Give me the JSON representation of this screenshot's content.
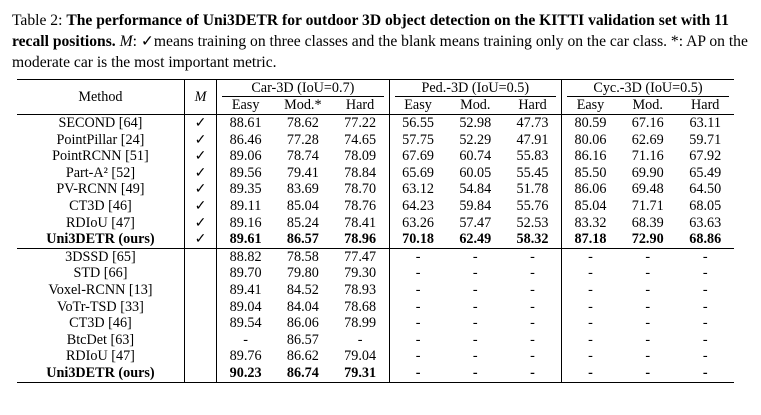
{
  "caption": {
    "label": "Table 2:",
    "bold": "The performance of Uni3DETR for outdoor 3D object detection on the KITTI validation set with 11 recall positions.",
    "m_symbol": "M",
    "rest": ": ✓means training on three classes and the blank means training only on the car class. *: AP on the moderate car is the most important metric."
  },
  "table": {
    "col_method": "Method",
    "col_m": "M",
    "groups": [
      "Car-3D (IoU=0.7)",
      "Ped.-3D (IoU=0.5)",
      "Cyc.-3D (IoU=0.5)"
    ],
    "subcols": [
      "Easy",
      "Mod.*",
      "Hard",
      "Easy",
      "Mod.",
      "Hard",
      "Easy",
      "Mod.",
      "Hard"
    ],
    "section1": [
      {
        "method": "SECOND [64]",
        "m": "✓",
        "vals": [
          "88.61",
          "78.62",
          "77.22",
          "56.55",
          "52.98",
          "47.73",
          "80.59",
          "67.16",
          "63.11"
        ]
      },
      {
        "method": "PointPillar [24]",
        "m": "✓",
        "vals": [
          "86.46",
          "77.28",
          "74.65",
          "57.75",
          "52.29",
          "47.91",
          "80.06",
          "62.69",
          "59.71"
        ]
      },
      {
        "method": "PointRCNN [51]",
        "m": "✓",
        "vals": [
          "89.06",
          "78.74",
          "78.09",
          "67.69",
          "60.74",
          "55.83",
          "86.16",
          "71.16",
          "67.92"
        ]
      },
      {
        "method": "Part-A² [52]",
        "m": "✓",
        "vals": [
          "89.56",
          "79.41",
          "78.84",
          "65.69",
          "60.05",
          "55.45",
          "85.50",
          "69.90",
          "65.49"
        ]
      },
      {
        "method": "PV-RCNN [49]",
        "m": "✓",
        "vals": [
          "89.35",
          "83.69",
          "78.70",
          "63.12",
          "54.84",
          "51.78",
          "86.06",
          "69.48",
          "64.50"
        ]
      },
      {
        "method": "CT3D [46]",
        "m": "✓",
        "vals": [
          "89.11",
          "85.04",
          "78.76",
          "64.23",
          "59.84",
          "55.76",
          "85.04",
          "71.71",
          "68.05"
        ]
      },
      {
        "method": "RDIoU [47]",
        "m": "✓",
        "vals": [
          "89.16",
          "85.24",
          "78.41",
          "63.26",
          "57.47",
          "52.53",
          "83.32",
          "68.39",
          "63.63"
        ]
      },
      {
        "method": "Uni3DETR (ours)",
        "m": "✓",
        "vals": [
          "89.61",
          "86.57",
          "78.96",
          "70.18",
          "62.49",
          "58.32",
          "87.18",
          "72.90",
          "68.86"
        ],
        "bold": true
      }
    ],
    "section2": [
      {
        "method": "3DSSD [65]",
        "m": "",
        "vals": [
          "88.82",
          "78.58",
          "77.47",
          "-",
          "-",
          "-",
          "-",
          "-",
          "-"
        ]
      },
      {
        "method": "STD [66]",
        "m": "",
        "vals": [
          "89.70",
          "79.80",
          "79.30",
          "-",
          "-",
          "-",
          "-",
          "-",
          "-"
        ]
      },
      {
        "method": "Voxel-RCNN [13]",
        "m": "",
        "vals": [
          "89.41",
          "84.52",
          "78.93",
          "-",
          "-",
          "-",
          "-",
          "-",
          "-"
        ]
      },
      {
        "method": "VoTr-TSD [33]",
        "m": "",
        "vals": [
          "89.04",
          "84.04",
          "78.68",
          "-",
          "-",
          "-",
          "-",
          "-",
          "-"
        ]
      },
      {
        "method": "CT3D [46]",
        "m": "",
        "vals": [
          "89.54",
          "86.06",
          "78.99",
          "-",
          "-",
          "-",
          "-",
          "-",
          "-"
        ]
      },
      {
        "method": "BtcDet [63]",
        "m": "",
        "vals": [
          "-",
          "86.57",
          "-",
          "-",
          "-",
          "-",
          "-",
          "-",
          "-"
        ]
      },
      {
        "method": "RDIoU [47]",
        "m": "",
        "vals": [
          "89.76",
          "86.62",
          "79.04",
          "-",
          "-",
          "-",
          "-",
          "-",
          "-"
        ]
      },
      {
        "method": "Uni3DETR (ours)",
        "m": "",
        "vals": [
          "90.23",
          "86.74",
          "79.31",
          "-",
          "-",
          "-",
          "-",
          "-",
          "-"
        ],
        "bold": true
      }
    ]
  }
}
